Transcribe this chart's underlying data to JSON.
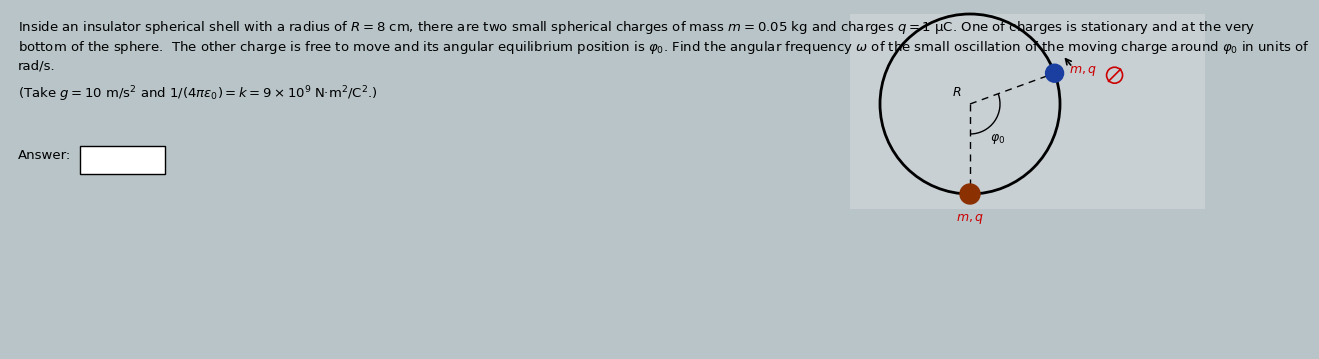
{
  "bg_color": "#b8c4c8",
  "line1": "Inside an insulator spherical shell with a radius of $R = 8$ cm, there are two small spherical charges of mass $m = 0.05$ kg and charges $q = 1$ μC. One of charges is stationary and at the very",
  "line2": "bottom of the sphere.  The other charge is free to move and its angular equilibrium position is $\\varphi_0$. Find the angular frequency $\\omega$ of the small oscillation of the moving charge around $\\varphi_0$ in units of",
  "line3": "rad/s.",
  "line4": "(Take $g = 10$ m/s$^2$ and $1/(4\\pi\\varepsilon_0) = k = 9 \\times 10^9$ N·m$^2$/C$^2$.)",
  "answer_label": "Answer:",
  "font_size_text": 9.5
}
